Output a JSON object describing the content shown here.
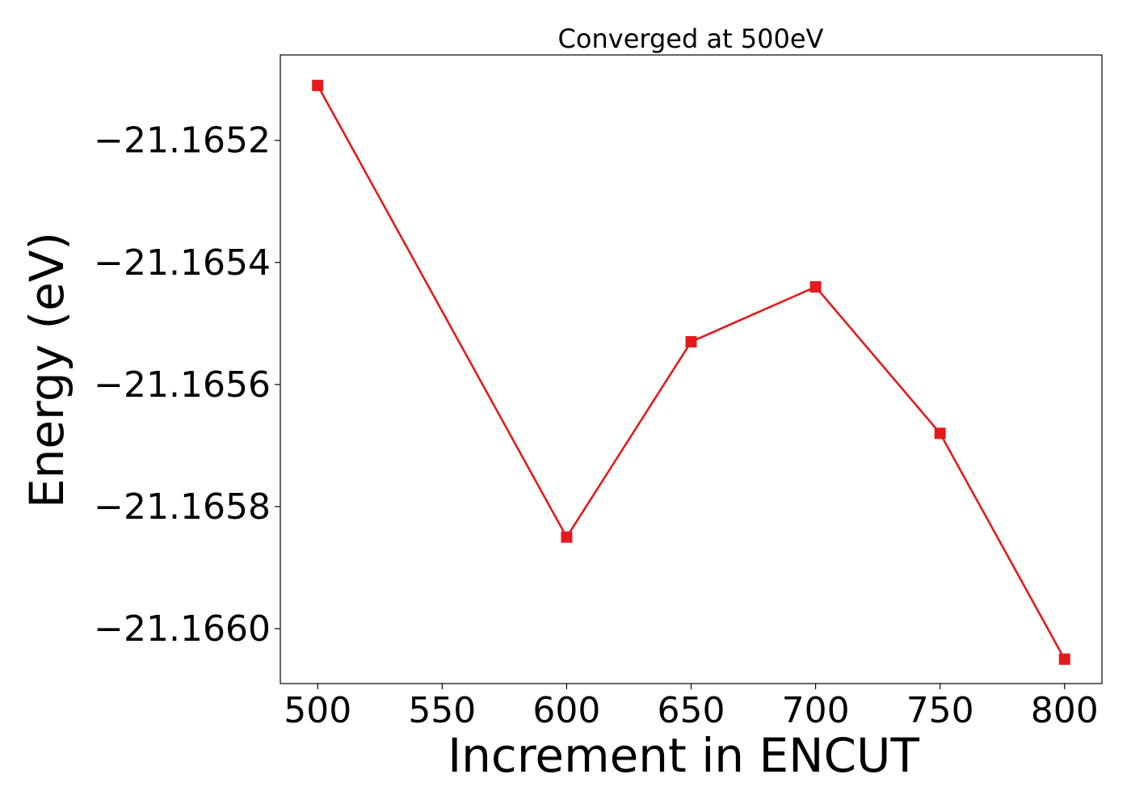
{
  "chart_data": {
    "type": "line",
    "title": "Converged at 500eV",
    "xlabel": "Increment in ENCUT",
    "ylabel": "Energy (eV)",
    "x": [
      500,
      600,
      650,
      700,
      750,
      800
    ],
    "series": [
      {
        "values": [
          -21.16511,
          -21.16585,
          -21.16553,
          -21.16544,
          -21.16568,
          -21.16605
        ],
        "color": "#e31a1c",
        "marker": "square"
      }
    ],
    "xlim": [
      485,
      815
    ],
    "ylim": [
      -21.16609,
      -21.16506
    ],
    "xticks": [
      500,
      550,
      600,
      650,
      700,
      750,
      800
    ],
    "xtick_labels": [
      "500",
      "550",
      "600",
      "650",
      "700",
      "750",
      "800"
    ],
    "yticks": [
      -21.1652,
      -21.1654,
      -21.1656,
      -21.1658,
      -21.166
    ],
    "ytick_labels": [
      "−21.1652",
      "−21.1654",
      "−21.1656",
      "−21.1658",
      "−21.1660"
    ],
    "grid": false,
    "legend": "none"
  }
}
